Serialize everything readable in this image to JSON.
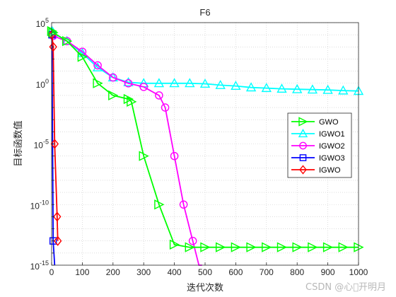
{
  "watermark": "CSDN @心\u0000开明月",
  "chart_data": {
    "type": "line",
    "title": "F6",
    "xlabel": "迭代次数",
    "ylabel": "目标函数值",
    "xlim": [
      0,
      1000
    ],
    "ylim": [
      1e-15,
      100000
    ],
    "yscale": "log",
    "grid": true,
    "legend_position": "right",
    "x_ticks": [
      0,
      100,
      200,
      300,
      400,
      500,
      600,
      700,
      800,
      900,
      1000
    ],
    "y_tick_exponents": [
      5,
      0,
      -5,
      -10,
      -15
    ],
    "series": [
      {
        "name": "GWO",
        "color": "#00ff00",
        "marker": "triangle-right",
        "x": [
          1,
          5,
          50,
          100,
          150,
          200,
          250,
          260,
          300,
          350,
          400,
          450,
          500,
          550,
          600,
          650,
          700,
          750,
          800,
          850,
          900,
          950,
          1000
        ],
        "y": [
          20000,
          15000,
          3000,
          150,
          1,
          0.1,
          0.05,
          0.03,
          1e-06,
          1e-10,
          5e-14,
          3e-14,
          3e-14,
          3e-14,
          3e-14,
          3e-14,
          3e-14,
          3e-14,
          3e-14,
          3e-14,
          3e-14,
          3e-14,
          3e-14
        ]
      },
      {
        "name": "IGWO1",
        "color": "#00ffff",
        "marker": "triangle-up",
        "x": [
          1,
          5,
          50,
          100,
          150,
          200,
          250,
          300,
          350,
          400,
          450,
          500,
          550,
          600,
          650,
          700,
          750,
          800,
          850,
          900,
          950,
          1000
        ],
        "y": [
          20000,
          15000,
          3000,
          300,
          20,
          3,
          1.2,
          1,
          1,
          1,
          1,
          0.9,
          0.7,
          0.6,
          0.45,
          0.4,
          0.35,
          0.32,
          0.3,
          0.28,
          0.25,
          0.23
        ]
      },
      {
        "name": "IGWO2",
        "color": "#ff00ff",
        "marker": "circle",
        "x": [
          1,
          5,
          50,
          100,
          150,
          200,
          250,
          300,
          350,
          370,
          400,
          430,
          460,
          480,
          490
        ],
        "y": [
          10000,
          8000,
          3000,
          400,
          30,
          3,
          1,
          0.5,
          0.1,
          0.01,
          1e-06,
          1e-10,
          1e-13,
          1e-15,
          1e-15
        ]
      },
      {
        "name": "IGWO3",
        "color": "#0000ff",
        "marker": "square",
        "x": [
          1,
          5,
          10
        ],
        "y": [
          10000,
          1e-13,
          1e-15
        ]
      },
      {
        "name": "IGWO",
        "color": "#ff0000",
        "marker": "diamond",
        "x": [
          1,
          5,
          10,
          18,
          20
        ],
        "y": [
          10000,
          1000,
          1e-05,
          1e-11,
          1e-13
        ]
      }
    ]
  }
}
